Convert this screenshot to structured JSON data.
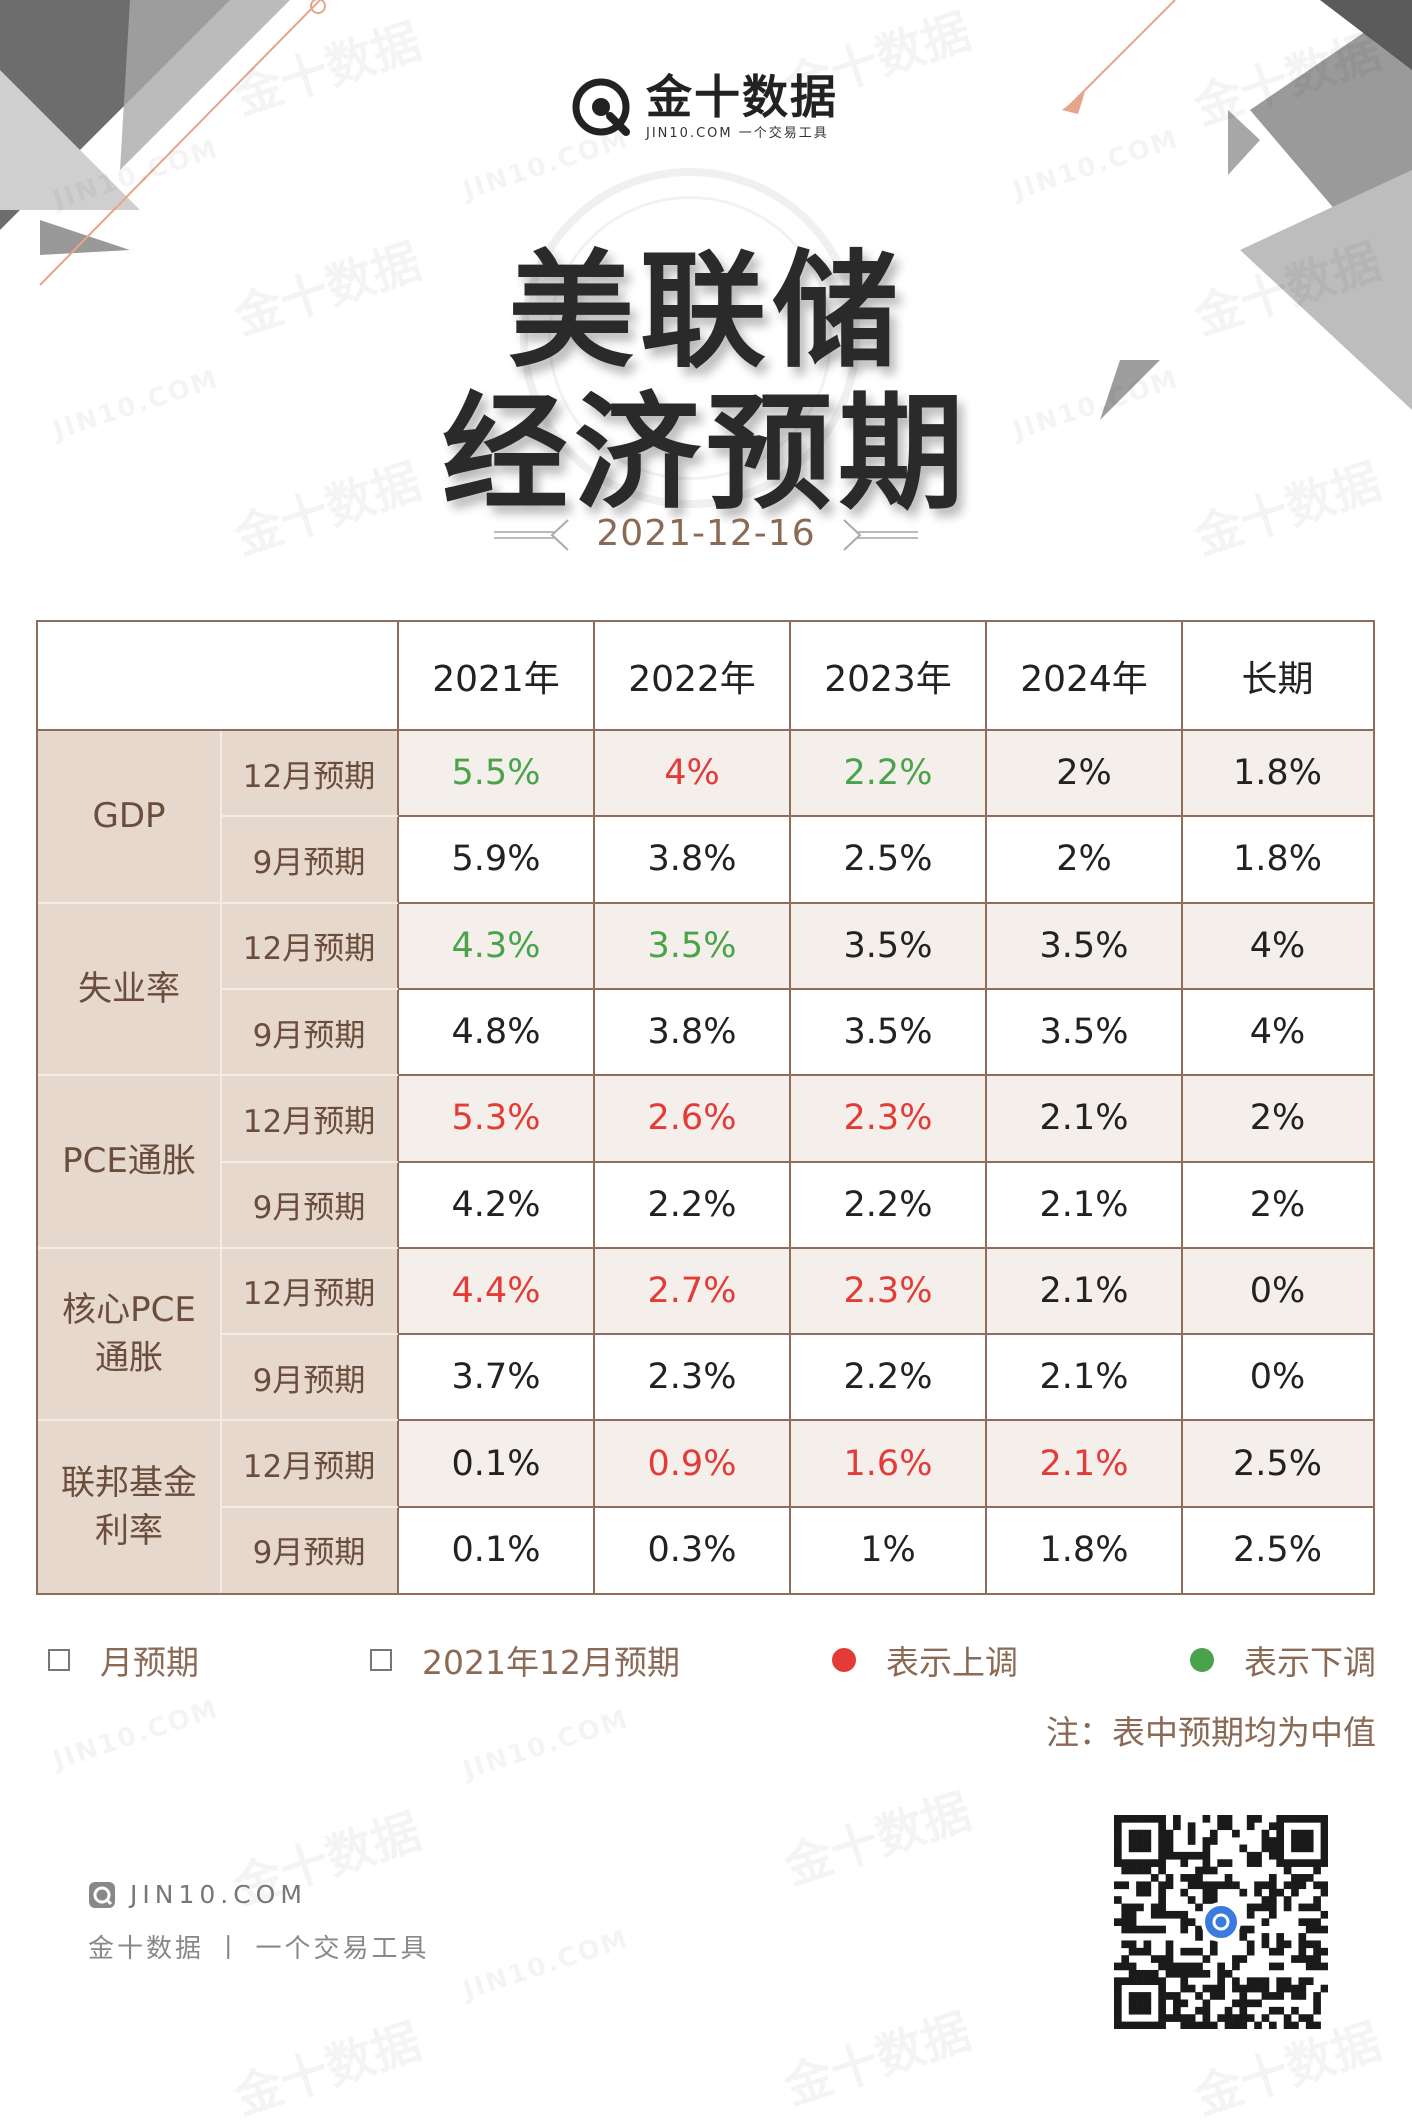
{
  "header": {
    "logo_cn": "金十数据",
    "logo_sub": "JIN10.COM 一个交易工具",
    "title_line1": "美联储",
    "title_line2": "经济预期",
    "date": "2021-12-16"
  },
  "watermark": {
    "cn": "金十数据",
    "en": "JIN10.COM"
  },
  "table": {
    "columns": [
      "2021年",
      "2022年",
      "2023年",
      "2024年",
      "长期"
    ],
    "groups": [
      {
        "name": "GDP",
        "rows": [
          {
            "label": "12月预期",
            "values": [
              "5.5%",
              "4%",
              "2.2%",
              "2%",
              "1.8%"
            ],
            "status": [
              "down",
              "up",
              "down",
              "none",
              "none"
            ]
          },
          {
            "label": "9月预期",
            "values": [
              "5.9%",
              "3.8%",
              "2.5%",
              "2%",
              "1.8%"
            ],
            "status": [
              "none",
              "none",
              "none",
              "none",
              "none"
            ]
          }
        ]
      },
      {
        "name": "失业率",
        "rows": [
          {
            "label": "12月预期",
            "values": [
              "4.3%",
              "3.5%",
              "3.5%",
              "3.5%",
              "4%"
            ],
            "status": [
              "down",
              "down",
              "none",
              "none",
              "none"
            ]
          },
          {
            "label": "9月预期",
            "values": [
              "4.8%",
              "3.8%",
              "3.5%",
              "3.5%",
              "4%"
            ],
            "status": [
              "none",
              "none",
              "none",
              "none",
              "none"
            ]
          }
        ]
      },
      {
        "name": "PCE通胀",
        "rows": [
          {
            "label": "12月预期",
            "values": [
              "5.3%",
              "2.6%",
              "2.3%",
              "2.1%",
              "2%"
            ],
            "status": [
              "up",
              "up",
              "up",
              "none",
              "none"
            ]
          },
          {
            "label": "9月预期",
            "values": [
              "4.2%",
              "2.2%",
              "2.2%",
              "2.1%",
              "2%"
            ],
            "status": [
              "none",
              "none",
              "none",
              "none",
              "none"
            ]
          }
        ]
      },
      {
        "name": "核心PCE 通胀",
        "name_lines": [
          "核心PCE",
          "通胀"
        ],
        "rows": [
          {
            "label": "12月预期",
            "values": [
              "4.4%",
              "2.7%",
              "2.3%",
              "2.1%",
              "0%"
            ],
            "status": [
              "up",
              "up",
              "up",
              "none",
              "none"
            ]
          },
          {
            "label": "9月预期",
            "values": [
              "3.7%",
              "2.3%",
              "2.2%",
              "2.1%",
              "0%"
            ],
            "status": [
              "none",
              "none",
              "none",
              "none",
              "none"
            ]
          }
        ]
      },
      {
        "name": "联邦基金 利率",
        "name_lines": [
          "联邦基金",
          "利率"
        ],
        "rows": [
          {
            "label": "12月预期",
            "values": [
              "0.1%",
              "0.9%",
              "1.6%",
              "2.1%",
              "2.5%"
            ],
            "status": [
              "none",
              "up",
              "up",
              "up",
              "none"
            ]
          },
          {
            "label": "9月预期",
            "values": [
              "0.1%",
              "0.3%",
              "1%",
              "1.8%",
              "2.5%"
            ],
            "status": [
              "none",
              "none",
              "none",
              "none",
              "none"
            ]
          }
        ]
      }
    ]
  },
  "legend": {
    "sep_label": "月预期",
    "dec_label": "2021年12月预期",
    "up_label": "表示上调",
    "down_label": "表示下调",
    "up_color": "#e43b36",
    "down_color": "#4aa34b"
  },
  "note": "注：表中预期均为中值",
  "footer": {
    "url": "JIN10.COM",
    "tagline": "金十数据 丨 一个交易工具"
  }
}
